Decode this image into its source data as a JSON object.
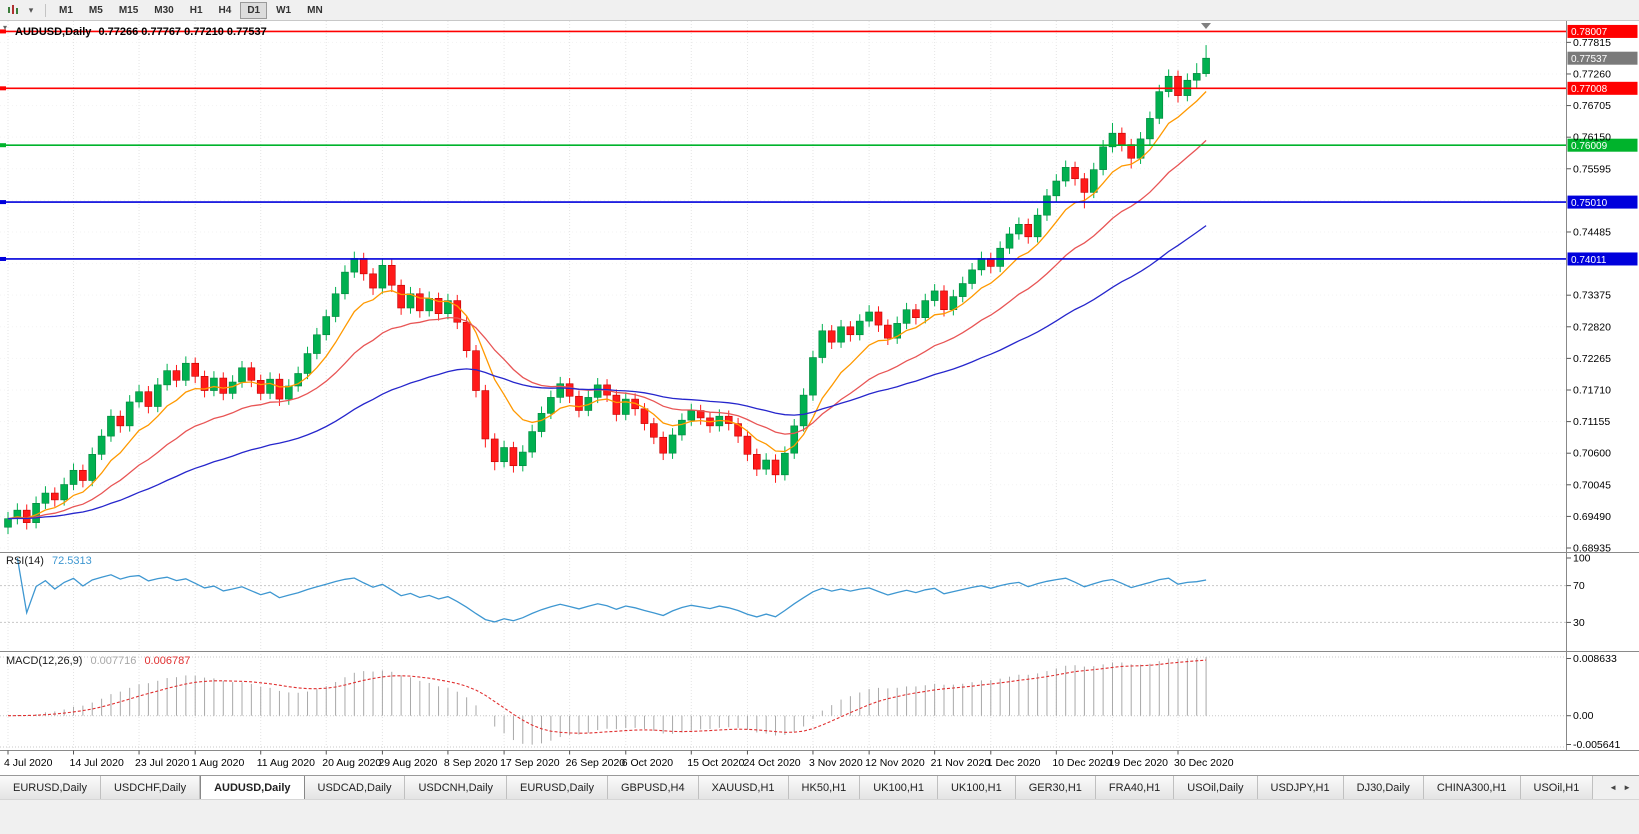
{
  "toolbar": {
    "timeframes": [
      "M1",
      "M5",
      "M15",
      "M30",
      "H1",
      "H4",
      "D1",
      "W1",
      "MN"
    ],
    "active_timeframe": "D1"
  },
  "icons": {
    "chart_dropdown": "▾",
    "tab_scroll_left": "◄",
    "tab_scroll_right": "►"
  },
  "chart": {
    "symbol_title": "AUDUSD,Daily",
    "ohlc_text": "0.77266 0.77767 0.77210 0.77537"
  },
  "chart_data": {
    "type": "candlestick",
    "symbol": "AUDUSD",
    "timeframe": "Daily",
    "current_bar": {
      "open": 0.77266,
      "high": 0.77767,
      "low": 0.7721,
      "close": 0.77537
    },
    "current_price_label": "0.77537",
    "current_price_box_color": "#7a7a7a",
    "y_axis": {
      "min": 0.689,
      "max": 0.7812,
      "tick_labels": [
        "0.77815",
        "0.77260",
        "0.76705",
        "0.76150",
        "0.75595",
        "0.75040",
        "0.74485",
        "0.73930",
        "0.73375",
        "0.72820",
        "0.72265",
        "0.71710",
        "0.71155",
        "0.70600",
        "0.70045",
        "0.69490",
        "0.68935"
      ]
    },
    "hlines": [
      {
        "price": 0.78007,
        "label": "0.78007",
        "color": "#ff0000"
      },
      {
        "price": 0.77008,
        "label": "0.77008",
        "color": "#ff0000"
      },
      {
        "price": 0.76009,
        "label": "0.76009",
        "color": "#00b32c"
      },
      {
        "price": 0.7501,
        "label": "0.75010",
        "color": "#0000dc"
      },
      {
        "price": 0.74011,
        "label": "0.74011",
        "color": "#0000dc"
      }
    ],
    "moving_averages": [
      {
        "type": "ema",
        "period": 8,
        "color": "#ff9900"
      },
      {
        "type": "ema",
        "period": 20,
        "color": "#e85555"
      },
      {
        "type": "ema",
        "period": 50,
        "color": "#2626cc"
      }
    ],
    "x_tick_labels": [
      "4 Jul 2020",
      "14 Jul 2020",
      "23 Jul 2020",
      "1 Aug 2020",
      "11 Aug 2020",
      "20 Aug 2020",
      "29 Aug 2020",
      "8 Sep 2020",
      "17 Sep 2020",
      "26 Sep 2020",
      "6 Oct 2020",
      "15 Oct 2020",
      "24 Oct 2020",
      "3 Nov 2020",
      "12 Nov 2020",
      "21 Nov 2020",
      "1 Dec 2020",
      "10 Dec 2020",
      "19 Dec 2020",
      "30 Dec 2020"
    ],
    "x_tick_indices": [
      0,
      7,
      14,
      20,
      27,
      34,
      40,
      47,
      53,
      60,
      66,
      73,
      79,
      86,
      92,
      99,
      105,
      112,
      118,
      125
    ],
    "candles": [
      [
        0.693,
        0.6957,
        0.6918,
        0.6945
      ],
      [
        0.6945,
        0.6972,
        0.6935,
        0.696
      ],
      [
        0.696,
        0.697,
        0.6926,
        0.6938
      ],
      [
        0.6938,
        0.6984,
        0.6928,
        0.6972
      ],
      [
        0.6972,
        0.7002,
        0.6962,
        0.699
      ],
      [
        0.699,
        0.7,
        0.6966,
        0.6978
      ],
      [
        0.6978,
        0.7017,
        0.6968,
        0.7005
      ],
      [
        0.7005,
        0.7042,
        0.6995,
        0.703
      ],
      [
        0.703,
        0.704,
        0.7,
        0.7012
      ],
      [
        0.7012,
        0.707,
        0.7002,
        0.7058
      ],
      [
        0.7058,
        0.7102,
        0.7048,
        0.709
      ],
      [
        0.709,
        0.7137,
        0.708,
        0.7125
      ],
      [
        0.7125,
        0.7135,
        0.7096,
        0.7108
      ],
      [
        0.7108,
        0.7162,
        0.7098,
        0.715
      ],
      [
        0.715,
        0.718,
        0.714,
        0.7168
      ],
      [
        0.7168,
        0.7178,
        0.713,
        0.7142
      ],
      [
        0.7142,
        0.7192,
        0.7132,
        0.718
      ],
      [
        0.718,
        0.7217,
        0.717,
        0.7205
      ],
      [
        0.7205,
        0.7215,
        0.7176,
        0.7188
      ],
      [
        0.7188,
        0.723,
        0.7178,
        0.7218
      ],
      [
        0.7218,
        0.7228,
        0.7183,
        0.7195
      ],
      [
        0.7195,
        0.7205,
        0.7158,
        0.717
      ],
      [
        0.717,
        0.7204,
        0.716,
        0.7192
      ],
      [
        0.7192,
        0.7202,
        0.7153,
        0.7165
      ],
      [
        0.7165,
        0.7197,
        0.7155,
        0.7185
      ],
      [
        0.7185,
        0.7222,
        0.7175,
        0.721
      ],
      [
        0.721,
        0.722,
        0.7176,
        0.7188
      ],
      [
        0.7188,
        0.7198,
        0.7153,
        0.7165
      ],
      [
        0.7165,
        0.7202,
        0.7155,
        0.719
      ],
      [
        0.719,
        0.72,
        0.7143,
        0.7155
      ],
      [
        0.7155,
        0.719,
        0.7145,
        0.7178
      ],
      [
        0.7178,
        0.7212,
        0.7168,
        0.72
      ],
      [
        0.72,
        0.7247,
        0.719,
        0.7235
      ],
      [
        0.7235,
        0.728,
        0.7225,
        0.7268
      ],
      [
        0.7268,
        0.7312,
        0.7258,
        0.73
      ],
      [
        0.73,
        0.7352,
        0.729,
        0.734
      ],
      [
        0.734,
        0.739,
        0.733,
        0.7378
      ],
      [
        0.7378,
        0.7414,
        0.7368,
        0.7402
      ],
      [
        0.7402,
        0.7412,
        0.7363,
        0.7375
      ],
      [
        0.7375,
        0.7385,
        0.7338,
        0.735
      ],
      [
        0.735,
        0.7402,
        0.734,
        0.739
      ],
      [
        0.739,
        0.74,
        0.7343,
        0.7355
      ],
      [
        0.7355,
        0.7365,
        0.7303,
        0.7315
      ],
      [
        0.7315,
        0.7352,
        0.7305,
        0.734
      ],
      [
        0.734,
        0.735,
        0.7298,
        0.731
      ],
      [
        0.731,
        0.7344,
        0.73,
        0.7332
      ],
      [
        0.7332,
        0.7342,
        0.7293,
        0.7305
      ],
      [
        0.7305,
        0.734,
        0.7295,
        0.7328
      ],
      [
        0.7328,
        0.7338,
        0.7278,
        0.729
      ],
      [
        0.729,
        0.73,
        0.7228,
        0.724
      ],
      [
        0.724,
        0.725,
        0.7158,
        0.717
      ],
      [
        0.717,
        0.718,
        0.707,
        0.7085
      ],
      [
        0.7085,
        0.7095,
        0.703,
        0.7045
      ],
      [
        0.7045,
        0.7082,
        0.7035,
        0.707
      ],
      [
        0.707,
        0.708,
        0.7026,
        0.7038
      ],
      [
        0.7038,
        0.7074,
        0.7028,
        0.7062
      ],
      [
        0.7062,
        0.711,
        0.7052,
        0.7098
      ],
      [
        0.7098,
        0.7142,
        0.7088,
        0.713
      ],
      [
        0.713,
        0.717,
        0.712,
        0.7158
      ],
      [
        0.7158,
        0.7194,
        0.7148,
        0.7182
      ],
      [
        0.7182,
        0.7192,
        0.7148,
        0.716
      ],
      [
        0.716,
        0.717,
        0.7123,
        0.7135
      ],
      [
        0.7135,
        0.717,
        0.7125,
        0.7158
      ],
      [
        0.7158,
        0.7192,
        0.7148,
        0.718
      ],
      [
        0.718,
        0.719,
        0.715,
        0.7162
      ],
      [
        0.7162,
        0.7172,
        0.7116,
        0.7128
      ],
      [
        0.7128,
        0.7167,
        0.7118,
        0.7155
      ],
      [
        0.7155,
        0.7165,
        0.7126,
        0.7138
      ],
      [
        0.7138,
        0.7148,
        0.71,
        0.7112
      ],
      [
        0.7112,
        0.7122,
        0.7076,
        0.7088
      ],
      [
        0.7088,
        0.7098,
        0.7048,
        0.706
      ],
      [
        0.706,
        0.7104,
        0.705,
        0.7092
      ],
      [
        0.7092,
        0.713,
        0.7082,
        0.7118
      ],
      [
        0.7118,
        0.7147,
        0.7108,
        0.7135
      ],
      [
        0.7135,
        0.7145,
        0.711,
        0.7122
      ],
      [
        0.7122,
        0.7132,
        0.7096,
        0.7108
      ],
      [
        0.7108,
        0.7137,
        0.7098,
        0.7125
      ],
      [
        0.7125,
        0.7135,
        0.71,
        0.7112
      ],
      [
        0.7112,
        0.7122,
        0.7078,
        0.709
      ],
      [
        0.709,
        0.71,
        0.7046,
        0.7058
      ],
      [
        0.7058,
        0.7068,
        0.702,
        0.7032
      ],
      [
        0.7032,
        0.706,
        0.7022,
        0.7048
      ],
      [
        0.7048,
        0.7058,
        0.7008,
        0.7022
      ],
      [
        0.7022,
        0.7072,
        0.7012,
        0.706
      ],
      [
        0.706,
        0.712,
        0.705,
        0.7108
      ],
      [
        0.7108,
        0.7174,
        0.7098,
        0.7162
      ],
      [
        0.7162,
        0.724,
        0.7152,
        0.7228
      ],
      [
        0.7228,
        0.7287,
        0.7218,
        0.7275
      ],
      [
        0.7275,
        0.7285,
        0.7243,
        0.7255
      ],
      [
        0.7255,
        0.7294,
        0.7245,
        0.7282
      ],
      [
        0.7282,
        0.7292,
        0.7256,
        0.7268
      ],
      [
        0.7268,
        0.7304,
        0.7258,
        0.7292
      ],
      [
        0.7292,
        0.732,
        0.7282,
        0.7308
      ],
      [
        0.7308,
        0.7318,
        0.7273,
        0.7285
      ],
      [
        0.7285,
        0.7295,
        0.725,
        0.7262
      ],
      [
        0.7262,
        0.73,
        0.7252,
        0.7288
      ],
      [
        0.7288,
        0.7324,
        0.7278,
        0.7312
      ],
      [
        0.7312,
        0.7322,
        0.7286,
        0.7298
      ],
      [
        0.7298,
        0.734,
        0.7288,
        0.7328
      ],
      [
        0.7328,
        0.7357,
        0.7318,
        0.7345
      ],
      [
        0.7345,
        0.7355,
        0.73,
        0.7312
      ],
      [
        0.7312,
        0.7347,
        0.7302,
        0.7335
      ],
      [
        0.7335,
        0.737,
        0.7325,
        0.7358
      ],
      [
        0.7358,
        0.7394,
        0.7348,
        0.7382
      ],
      [
        0.7382,
        0.7414,
        0.7372,
        0.7402
      ],
      [
        0.7402,
        0.7412,
        0.7376,
        0.7388
      ],
      [
        0.7388,
        0.7432,
        0.7378,
        0.742
      ],
      [
        0.742,
        0.7457,
        0.741,
        0.7445
      ],
      [
        0.7445,
        0.7474,
        0.7435,
        0.7462
      ],
      [
        0.7462,
        0.7472,
        0.7428,
        0.744
      ],
      [
        0.744,
        0.749,
        0.743,
        0.7478
      ],
      [
        0.7478,
        0.7524,
        0.7468,
        0.7512
      ],
      [
        0.7512,
        0.755,
        0.7502,
        0.7538
      ],
      [
        0.7538,
        0.7574,
        0.7528,
        0.7562
      ],
      [
        0.7562,
        0.7572,
        0.753,
        0.7542
      ],
      [
        0.7542,
        0.7552,
        0.749,
        0.7518
      ],
      [
        0.7518,
        0.757,
        0.7508,
        0.7558
      ],
      [
        0.7558,
        0.761,
        0.7548,
        0.7598
      ],
      [
        0.7598,
        0.764,
        0.7588,
        0.7622
      ],
      [
        0.7622,
        0.7632,
        0.759,
        0.7602
      ],
      [
        0.7602,
        0.7612,
        0.756,
        0.7578
      ],
      [
        0.7578,
        0.7624,
        0.7568,
        0.7612
      ],
      [
        0.7612,
        0.766,
        0.7602,
        0.7648
      ],
      [
        0.7648,
        0.7707,
        0.7638,
        0.7695
      ],
      [
        0.7695,
        0.7734,
        0.7685,
        0.7722
      ],
      [
        0.7722,
        0.7732,
        0.7676,
        0.7688
      ],
      [
        0.7688,
        0.7727,
        0.7678,
        0.7715
      ],
      [
        0.7715,
        0.7745,
        0.77,
        0.7727
      ],
      [
        0.77266,
        0.77767,
        0.7721,
        0.77537
      ]
    ],
    "rsi": {
      "name": "RSI(14)",
      "period": 14,
      "value": "72.5313",
      "levels": [
        100,
        70,
        30
      ],
      "color": "#3e97d1"
    },
    "macd": {
      "name": "MACD(12,26,9)",
      "fast": 12,
      "slow": 26,
      "signal": 9,
      "value_main": "0.007716",
      "value_signal": "0.006787",
      "axis_labels": [
        "0.008633",
        "0.00",
        "-0.005641"
      ],
      "histogram_color": "#a8a8a8",
      "signal_color": "#e03030"
    }
  },
  "tabs": {
    "items": [
      "EURUSD,Daily",
      "USDCHF,Daily",
      "AUDUSD,Daily",
      "USDCAD,Daily",
      "USDCNH,Daily",
      "EURUSD,Daily",
      "GBPUSD,H4",
      "XAUUSD,H1",
      "HK50,H1",
      "UK100,H1",
      "UK100,H1",
      "GER30,H1",
      "FRA40,H1",
      "USOil,Daily",
      "USDJPY,H1",
      "DJ30,Daily",
      "CHINA300,H1",
      "USOil,H1"
    ],
    "active_index": 2
  }
}
